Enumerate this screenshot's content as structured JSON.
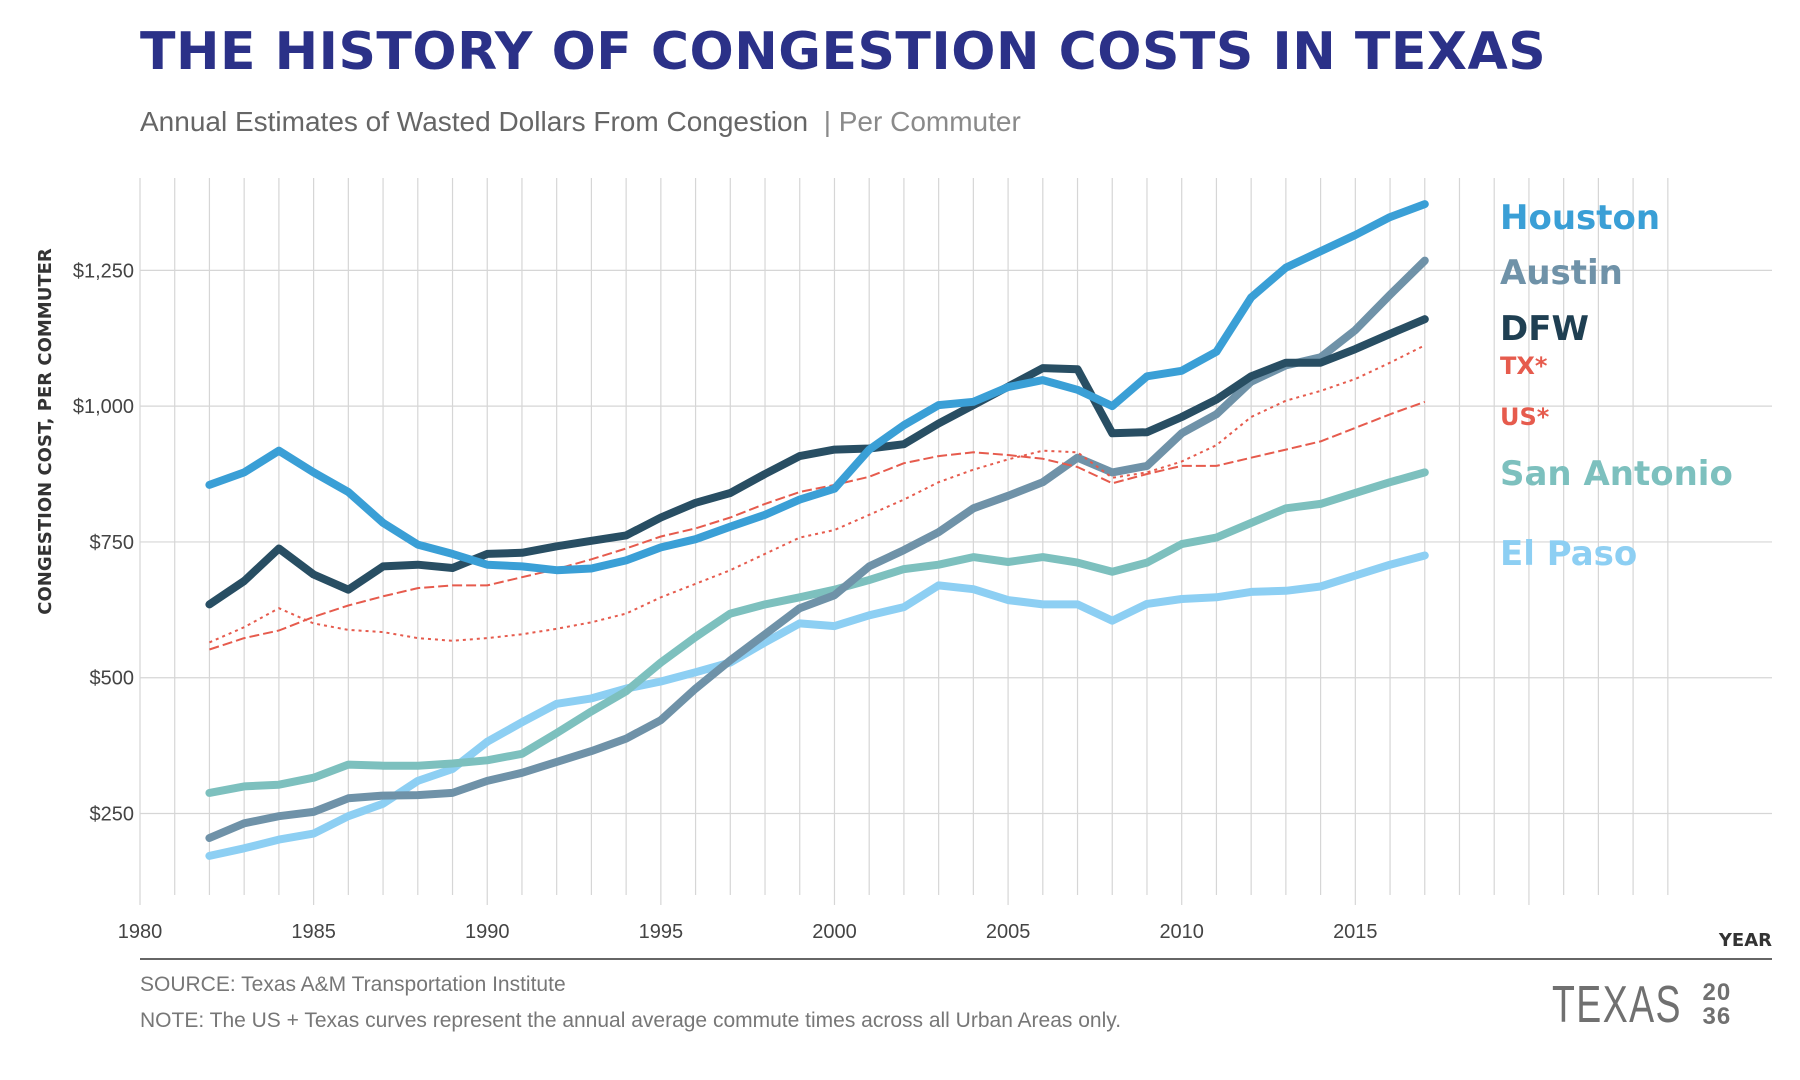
{
  "header": {
    "title": "THE HISTORY OF CONGESTION COSTS IN TEXAS",
    "subtitle": "Annual Estimates of Wasted Dollars From Congestion",
    "subtitle_suffix": "| Per Commuter"
  },
  "footer": {
    "source": "SOURCE: Texas A&M Transportation Institute",
    "note": "NOTE: The US + Texas curves represent the annual average commute times across all Urban Areas only.",
    "logo_word": "TEXAS",
    "logo_num_top": "20",
    "logo_num_bottom": "36"
  },
  "chart_data": {
    "type": "line",
    "xlabel": "YEAR",
    "ylabel": "CONGESTION COST, PER COMMUTER",
    "xlim": [
      1980,
      2027
    ],
    "ylim": [
      100,
      1420
    ],
    "x_ticks": [
      1980,
      1985,
      1990,
      1995,
      2000,
      2005,
      2010,
      2015
    ],
    "x_tick_labels": [
      "1980",
      "1985",
      "1990",
      "1995",
      "2000",
      "2005",
      "2010",
      "2015"
    ],
    "y_ticks": [
      250,
      500,
      750,
      1000,
      1250
    ],
    "y_tick_labels": [
      "$250",
      "$500",
      "$750",
      "$1,000",
      "$1,250"
    ],
    "grid": true,
    "legend_placement": "right-end labels",
    "x": [
      1982,
      1983,
      1984,
      1985,
      1986,
      1987,
      1988,
      1989,
      1990,
      1991,
      1992,
      1993,
      1994,
      1995,
      1996,
      1997,
      1998,
      1999,
      2000,
      2001,
      2002,
      2003,
      2004,
      2005,
      2006,
      2007,
      2008,
      2009,
      2010,
      2011,
      2012,
      2013,
      2014,
      2015,
      2016,
      2017
    ],
    "series": [
      {
        "name": "Houston",
        "color": "#3a9fd6",
        "style": "solid",
        "values": [
          855,
          878,
          918,
          878,
          842,
          785,
          745,
          728,
          708,
          705,
          698,
          701,
          716,
          740,
          755,
          778,
          800,
          828,
          848,
          920,
          965,
          1002,
          1008,
          1035,
          1048,
          1030,
          1000,
          1055,
          1065,
          1100,
          1200,
          1255,
          1285,
          1315,
          1348,
          1372
        ]
      },
      {
        "name": "Austin",
        "color": "#6f92a8",
        "style": "solid",
        "values": [
          205,
          232,
          245,
          253,
          278,
          283,
          284,
          288,
          310,
          325,
          345,
          365,
          388,
          422,
          480,
          532,
          580,
          628,
          652,
          705,
          735,
          768,
          812,
          835,
          860,
          905,
          878,
          890,
          950,
          985,
          1045,
          1075,
          1090,
          1140,
          1205,
          1268
        ]
      },
      {
        "name": "DFW",
        "color": "#284e63",
        "style": "solid",
        "values": [
          635,
          678,
          738,
          690,
          662,
          705,
          708,
          702,
          728,
          730,
          742,
          752,
          762,
          795,
          822,
          840,
          875,
          908,
          920,
          922,
          930,
          968,
          1002,
          1036,
          1070,
          1068,
          950,
          952,
          980,
          1012,
          1055,
          1080,
          1080,
          1105,
          1133,
          1160
        ]
      },
      {
        "name": "TX*",
        "color": "#e65b4d",
        "style": "dotted",
        "values": [
          565,
          593,
          628,
          600,
          588,
          584,
          573,
          568,
          573,
          580,
          590,
          602,
          618,
          648,
          673,
          698,
          728,
          758,
          772,
          800,
          828,
          860,
          883,
          902,
          918,
          915,
          868,
          878,
          898,
          928,
          980,
          1010,
          1028,
          1050,
          1080,
          1112
        ]
      },
      {
        "name": "US*",
        "color": "#e65b4d",
        "style": "dashed",
        "values": [
          552,
          573,
          587,
          612,
          633,
          650,
          665,
          670,
          670,
          685,
          700,
          718,
          738,
          760,
          775,
          795,
          820,
          842,
          855,
          870,
          895,
          908,
          915,
          910,
          903,
          888,
          858,
          875,
          890,
          890,
          905,
          920,
          935,
          960,
          985,
          1008
        ]
      },
      {
        "name": "San Antonio",
        "color": "#7dc0be",
        "style": "solid",
        "values": [
          288,
          300,
          303,
          316,
          340,
          338,
          338,
          342,
          348,
          360,
          398,
          438,
          475,
          528,
          575,
          618,
          635,
          648,
          662,
          680,
          700,
          708,
          722,
          713,
          722,
          712,
          695,
          712,
          746,
          758,
          785,
          812,
          820,
          840,
          860,
          878
        ]
      },
      {
        "name": "El Paso",
        "color": "#8dcff3",
        "style": "solid",
        "values": [
          172,
          186,
          202,
          213,
          245,
          268,
          310,
          332,
          382,
          418,
          452,
          462,
          480,
          493,
          510,
          528,
          565,
          600,
          595,
          615,
          630,
          670,
          663,
          643,
          635,
          635,
          605,
          636,
          645,
          648,
          658,
          660,
          668,
          688,
          708,
          725
        ]
      }
    ]
  }
}
